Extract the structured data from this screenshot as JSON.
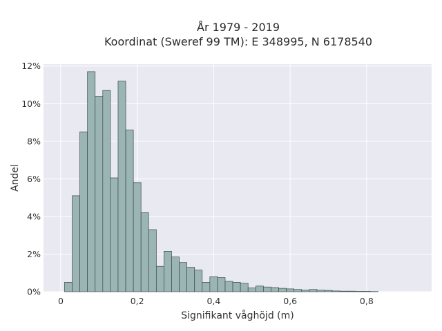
{
  "chart_data": {
    "type": "bar",
    "title_line1": "År 1979 - 2019",
    "title_line2": "Koordinat (Sweref 99 TM): E 348995, N 6178540",
    "xlabel": "Signifikant våghöjd (m)",
    "ylabel": "Andel",
    "xlim": [
      -0.045,
      0.97
    ],
    "ylim": [
      0,
      12.1
    ],
    "bin_width": 0.02,
    "bin_start": 0.01,
    "x_ticks": [
      0,
      0.2,
      0.4,
      0.6,
      0.8
    ],
    "x_tick_labels": [
      "0",
      "0,2",
      "0,4",
      "0,6",
      "0,8"
    ],
    "y_ticks": [
      0,
      2,
      4,
      6,
      8,
      10,
      12
    ],
    "y_tick_labels": [
      "0%",
      "2%",
      "4%",
      "6%",
      "8%",
      "10%",
      "12%"
    ],
    "values": [
      0.5,
      5.1,
      8.5,
      11.7,
      10.4,
      10.7,
      6.05,
      11.2,
      8.6,
      5.8,
      4.2,
      3.3,
      1.35,
      2.15,
      1.85,
      1.55,
      1.3,
      1.15,
      0.5,
      0.8,
      0.75,
      0.55,
      0.5,
      0.45,
      0.2,
      0.3,
      0.25,
      0.22,
      0.18,
      0.15,
      0.12,
      0.08,
      0.12,
      0.08,
      0.07,
      0.04,
      0.03,
      0.03,
      0.02,
      0.02,
      0.01
    ]
  }
}
